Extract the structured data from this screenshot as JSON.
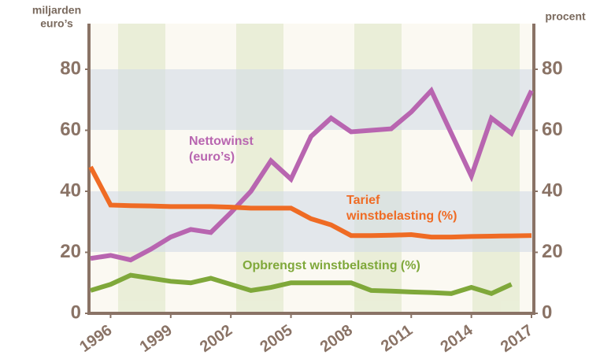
{
  "chart_data": {
    "type": "line",
    "y_label": [
      "miljarden",
      "euro’s"
    ],
    "y2_label": "procent",
    "x": [
      1995,
      1996,
      1997,
      1998,
      1999,
      2000,
      2001,
      2002,
      2003,
      2004,
      2005,
      2006,
      2007,
      2008,
      2009,
      2010,
      2011,
      2012,
      2013,
      2014,
      2015,
      2016,
      2017
    ],
    "xlim": [
      1995,
      2017
    ],
    "xticks": [
      1996,
      1999,
      2002,
      2005,
      2008,
      2011,
      2014,
      2017
    ],
    "ylim": [
      0,
      80
    ],
    "yticks": [
      0,
      20,
      40,
      60,
      80
    ],
    "y2lim": [
      0,
      80
    ],
    "y2ticks": [
      0,
      20,
      40,
      60,
      80
    ],
    "series": [
      {
        "name": [
          "Nettowinst",
          "(euro’s)"
        ],
        "color": "#b865b0",
        "values": [
          18,
          19,
          17.5,
          21,
          25,
          27.5,
          26.5,
          33,
          40,
          50,
          44,
          58,
          64,
          59.5,
          60,
          60.5,
          66,
          73,
          59,
          45,
          64,
          59,
          73
        ]
      },
      {
        "name": [
          "Tarief",
          "winstbelasting (%)"
        ],
        "color": "#ef6b24",
        "axis": "y2",
        "values": [
          48,
          35.5,
          35.3,
          35.2,
          35,
          35,
          35,
          34.8,
          34.5,
          34.5,
          34.5,
          31,
          29,
          25.5,
          25.5,
          25.6,
          25.8,
          25,
          25,
          25.2,
          25.3,
          25.4,
          25.5
        ]
      },
      {
        "name": [
          "Opbrengst winstbelasting (%)"
        ],
        "color": "#7fa83a",
        "axis": "y2",
        "values": [
          7.5,
          9.5,
          12.5,
          11.5,
          10.5,
          10,
          11.5,
          9.5,
          7.5,
          8.5,
          10,
          10,
          10,
          10,
          7.5,
          7.3,
          7,
          6.8,
          6.5,
          8.5,
          6.5,
          9.5,
          null
        ]
      }
    ]
  }
}
